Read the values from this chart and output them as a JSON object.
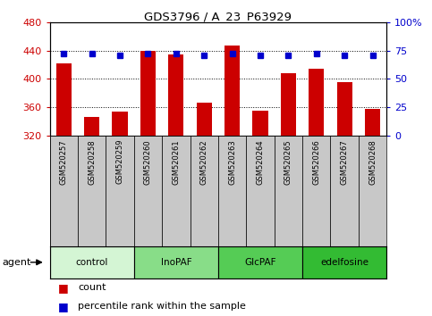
{
  "title": "GDS3796 / A_23_P63929",
  "samples": [
    "GSM520257",
    "GSM520258",
    "GSM520259",
    "GSM520260",
    "GSM520261",
    "GSM520262",
    "GSM520263",
    "GSM520264",
    "GSM520265",
    "GSM520266",
    "GSM520267",
    "GSM520268"
  ],
  "counts": [
    422,
    347,
    354,
    440,
    434,
    367,
    447,
    355,
    408,
    415,
    396,
    358
  ],
  "percentile_ranks": [
    72,
    72,
    71,
    72,
    72,
    71,
    72,
    71,
    71,
    72,
    71,
    71
  ],
  "ymin": 320,
  "ymax": 480,
  "yticks": [
    320,
    360,
    400,
    440,
    480
  ],
  "yright_min": 0,
  "yright_max": 100,
  "yright_ticks": [
    0,
    25,
    50,
    75,
    100
  ],
  "yright_labels": [
    "0",
    "25",
    "50",
    "75",
    "100%"
  ],
  "groups": [
    {
      "label": "control",
      "start": 0,
      "end": 3,
      "color": "#d4f5d4"
    },
    {
      "label": "InoPAF",
      "start": 3,
      "end": 6,
      "color": "#88dd88"
    },
    {
      "label": "GlcPAF",
      "start": 6,
      "end": 9,
      "color": "#55cc55"
    },
    {
      "label": "edelfosine",
      "start": 9,
      "end": 12,
      "color": "#33bb33"
    }
  ],
  "bar_color": "#cc0000",
  "dot_color": "#0000cc",
  "bar_bottom": 320,
  "left_tick_color": "#cc0000",
  "right_tick_color": "#0000cc",
  "sample_box_color": "#c8c8c8",
  "legend_count_color": "#cc0000",
  "legend_dot_color": "#0000cc"
}
